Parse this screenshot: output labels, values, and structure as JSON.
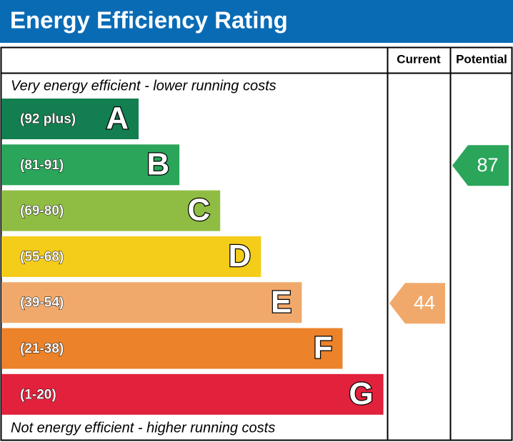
{
  "header": {
    "title": "Energy Efficiency Rating"
  },
  "columns": {
    "current": "Current",
    "potential": "Potential"
  },
  "top_note": "Very energy efficient - lower running costs",
  "bottom_note": "Not energy efficient - higher running costs",
  "bands": [
    {
      "range": "(92 plus)",
      "letter": "A",
      "color": "#137e4f"
    },
    {
      "range": "(81-91)",
      "letter": "B",
      "color": "#2aa55a"
    },
    {
      "range": "(69-80)",
      "letter": "C",
      "color": "#8fbd43"
    },
    {
      "range": "(55-68)",
      "letter": "D",
      "color": "#f4cc1a"
    },
    {
      "range": "(39-54)",
      "letter": "E",
      "color": "#f1a96b"
    },
    {
      "range": "(21-38)",
      "letter": "F",
      "color": "#ec8229"
    },
    {
      "range": "(1-20)",
      "letter": "G",
      "color": "#e2213c"
    }
  ],
  "ratings": {
    "current": 44,
    "potential": 87
  }
}
